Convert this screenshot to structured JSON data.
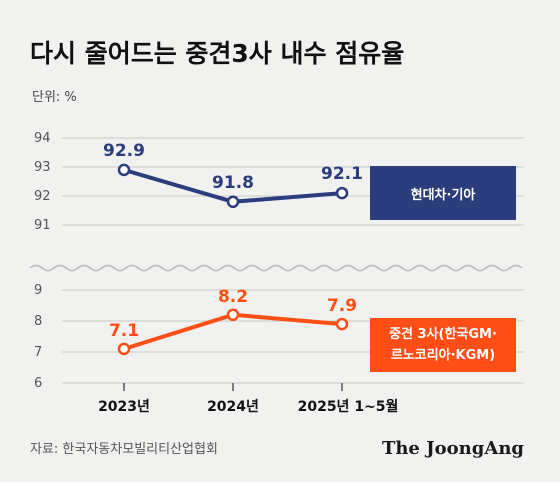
{
  "title": "다시 줄어드는 중견3사 내수 점유율",
  "unit_label": "단위: %",
  "source": "자료: 한국자동차모빌리티산업협회",
  "brand": "The JoongAng",
  "colors": {
    "navy": "#2b3d7c",
    "orange": "#ff4f17",
    "grid": "#c9c9c9"
  },
  "chart_data": [
    {
      "type": "line",
      "categories": [
        "2023년",
        "2024년",
        "2025년 1~5월"
      ],
      "yticks": [
        91,
        92,
        93,
        94
      ],
      "ylim": [
        90.6,
        94
      ],
      "series": [
        {
          "name": "현대차·기아",
          "values": [
            92.9,
            91.8,
            92.1
          ]
        }
      ],
      "value_labels": [
        "92.9",
        "91.8",
        "92.1"
      ]
    },
    {
      "type": "line",
      "categories": [
        "2023년",
        "2024년",
        "2025년 1~5월"
      ],
      "yticks": [
        6,
        7,
        8,
        9
      ],
      "ylim": [
        6,
        9
      ],
      "series": [
        {
          "name": "중견 3사(한국GM·르노코리아·KGM)",
          "values": [
            7.1,
            8.2,
            7.9
          ]
        }
      ],
      "legend_lines": [
        "중견 3사(한국GM·",
        "르노코리아·KGM)"
      ],
      "value_labels": [
        "7.1",
        "8.2",
        "7.9"
      ]
    }
  ]
}
